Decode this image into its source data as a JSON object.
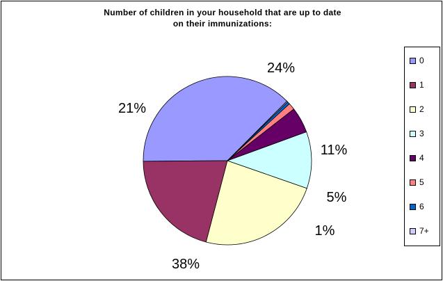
{
  "chart_data": {
    "type": "pie",
    "title": "Number of children in your household that are up to date on their immunizations:",
    "title_lines": [
      "Number of children in your household that are up to date",
      "on their immunizations:"
    ],
    "categories": [
      "0",
      "1",
      "2",
      "3",
      "4",
      "5",
      "6",
      "7+"
    ],
    "values": [
      38,
      21,
      24,
      11,
      5,
      1.3,
      0.5,
      0.2
    ],
    "data_labels": [
      "38%",
      "21%",
      "24%",
      "11%",
      "5%",
      "1%",
      "",
      ""
    ],
    "colors": [
      "#9999FF",
      "#993366",
      "#FFFFCC",
      "#CCFFFF",
      "#660066",
      "#FF8080",
      "#0066CC",
      "#CCCCFF"
    ],
    "legend_placement": "right",
    "start_angle_deg": 45
  }
}
